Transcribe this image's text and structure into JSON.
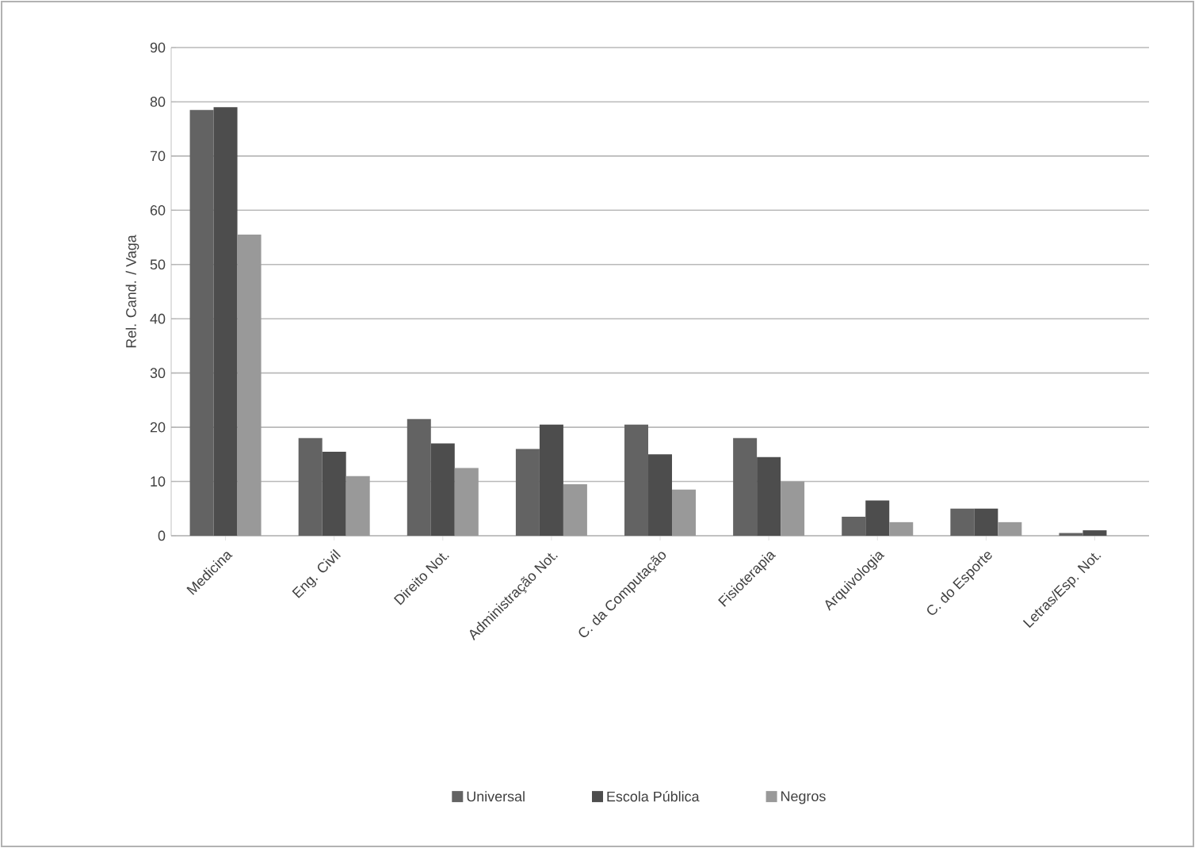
{
  "chart_data": {
    "type": "bar",
    "ylabel": "Rel. Cand. / Vaga",
    "categories": [
      "Medicina",
      "Eng. Civil",
      "Direito Not.",
      "Administração Not.",
      "C. da Computação",
      "Fisioterapia",
      "Arquivologia",
      "C. do Esporte",
      "Letras/Esp. Not."
    ],
    "series": [
      {
        "name": "Universal",
        "color": "#636363",
        "values": [
          78.5,
          18,
          21.5,
          16,
          20.5,
          18,
          3.5,
          5,
          0.5
        ]
      },
      {
        "name": "Escola Pública",
        "color": "#4d4d4d",
        "values": [
          79,
          15.5,
          17,
          20.5,
          15,
          14.5,
          6.5,
          5,
          1
        ]
      },
      {
        "name": "Negros",
        "color": "#999999",
        "values": [
          55.5,
          11,
          12.5,
          9.5,
          8.5,
          10,
          2.5,
          2.5,
          0
        ]
      }
    ],
    "ylim": [
      0,
      90
    ],
    "yticks": [
      0,
      10,
      20,
      30,
      40,
      50,
      60,
      70,
      80,
      90
    ],
    "grid": "y",
    "legend": "bottom"
  }
}
